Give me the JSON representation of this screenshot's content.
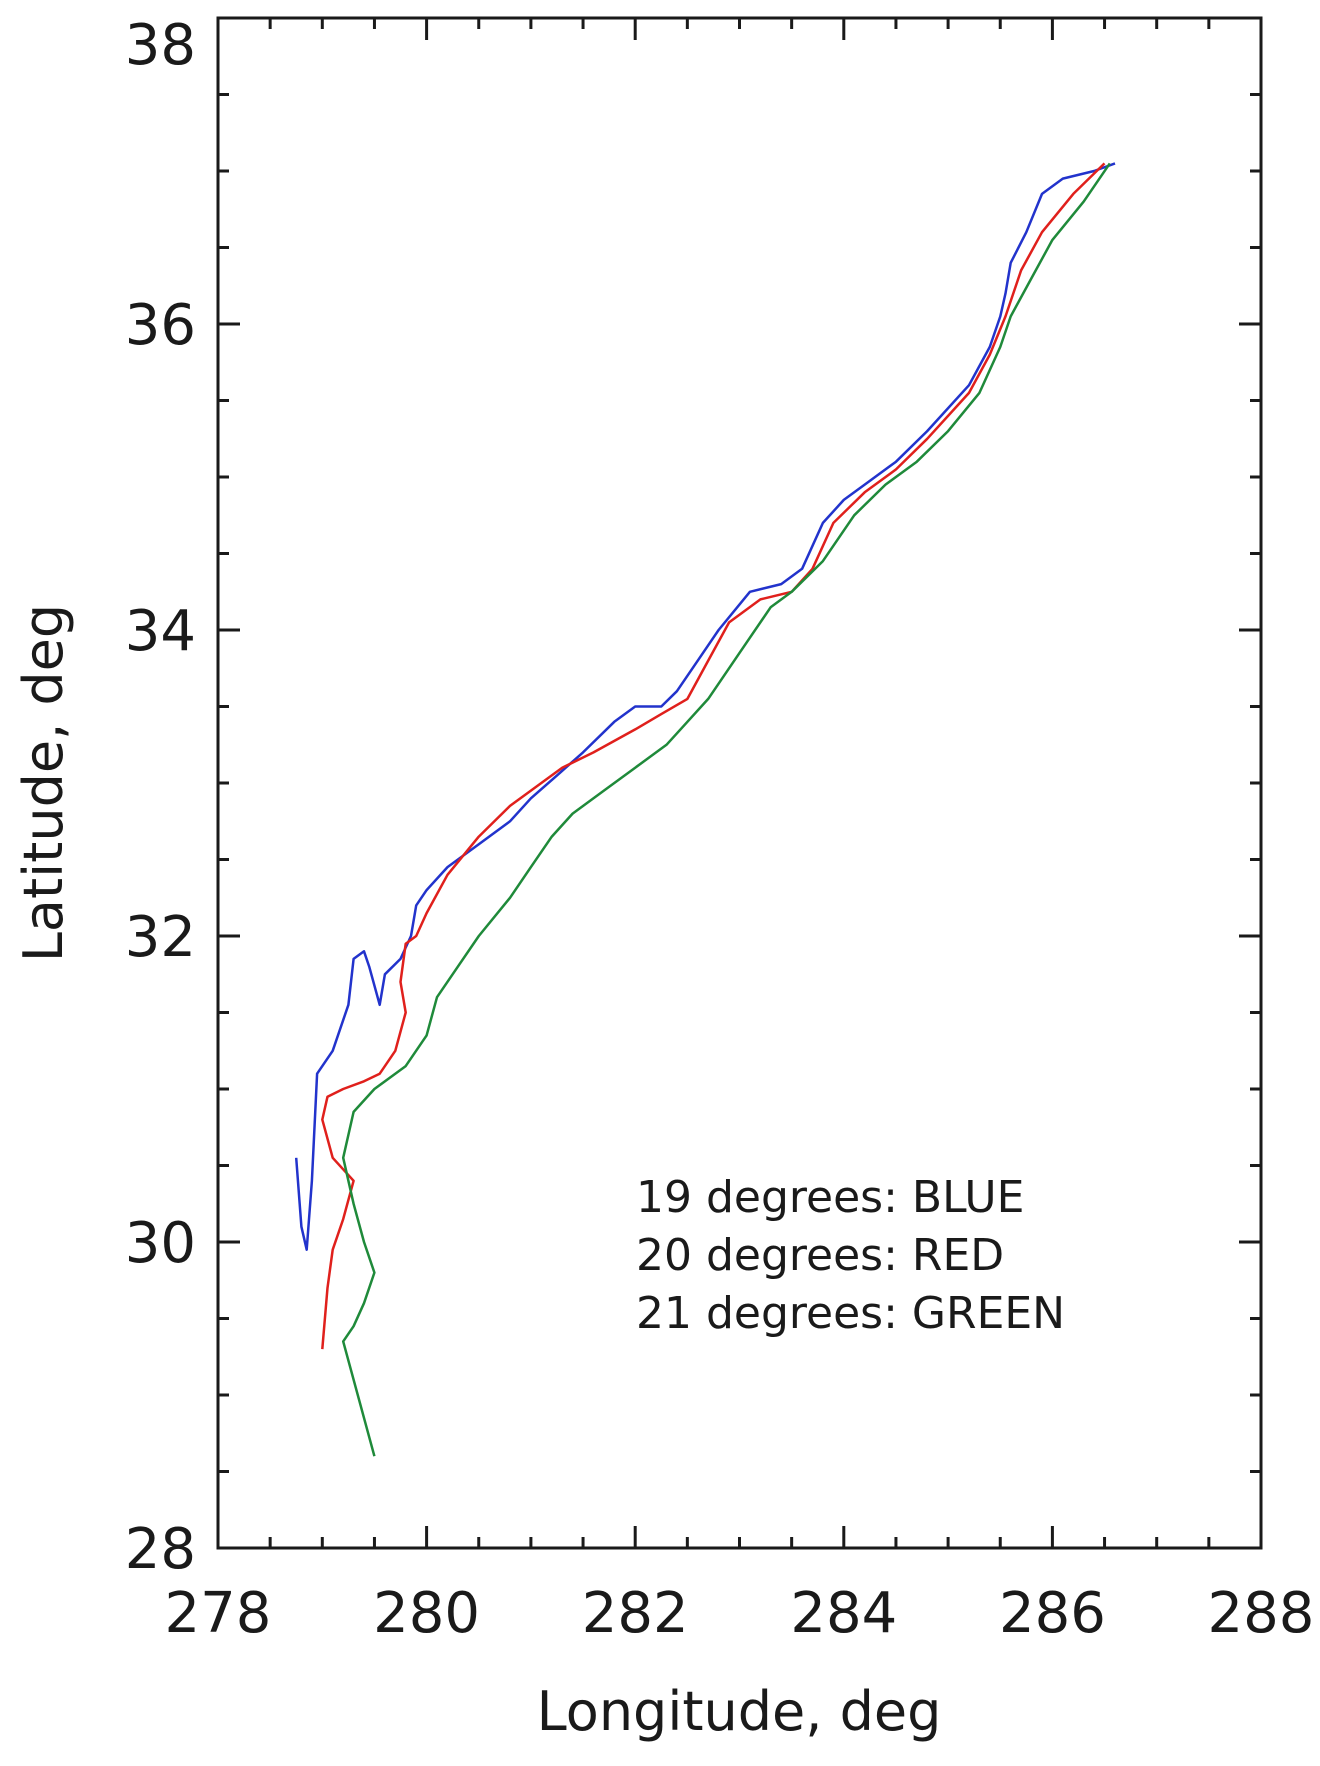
{
  "chart_data": {
    "type": "line",
    "title": "",
    "xlabel": "Longitude, deg",
    "ylabel": "Latitude, deg",
    "xlim": [
      278,
      288
    ],
    "ylim": [
      28,
      38
    ],
    "xticks": [
      "278",
      "280",
      "282",
      "284",
      "286",
      "288"
    ],
    "yticks": [
      "28",
      "30",
      "32",
      "34",
      "36",
      "38"
    ],
    "grid": false,
    "legend_placement": "bottom-right",
    "legend_entries": [
      "19 degrees: BLUE",
      "20 degrees: RED",
      "21 degrees: GREEN"
    ],
    "series": [
      {
        "name": "19 degrees: BLUE",
        "color": "#2233cc",
        "x": [
          278.75,
          278.8,
          278.85,
          278.9,
          278.95,
          279.1,
          279.25,
          279.3,
          279.4,
          279.45,
          279.55,
          279.6,
          279.75,
          279.85,
          279.9,
          280.0,
          280.2,
          280.5,
          280.8,
          281.0,
          281.25,
          281.5,
          281.8,
          282.0,
          282.25,
          282.4,
          282.6,
          282.8,
          283.1,
          283.4,
          283.6,
          283.8,
          284.0,
          284.2,
          284.5,
          284.8,
          285.2,
          285.4,
          285.5,
          285.55,
          285.6,
          285.75,
          285.9,
          286.1,
          286.4,
          286.6
        ],
        "y": [
          30.55,
          30.1,
          29.95,
          30.4,
          31.1,
          31.25,
          31.55,
          31.85,
          31.9,
          31.8,
          31.55,
          31.75,
          31.85,
          32.0,
          32.2,
          32.3,
          32.45,
          32.6,
          32.75,
          32.9,
          33.05,
          33.2,
          33.4,
          33.5,
          33.5,
          33.6,
          33.8,
          34.0,
          34.25,
          34.3,
          34.4,
          34.7,
          34.85,
          34.95,
          35.1,
          35.3,
          35.6,
          35.85,
          36.05,
          36.2,
          36.4,
          36.6,
          36.85,
          36.95,
          37.0,
          37.05
        ]
      },
      {
        "name": "20 degrees: RED",
        "color": "#e0201c",
        "x": [
          279.0,
          279.05,
          279.1,
          279.2,
          279.3,
          279.1,
          279.0,
          279.05,
          279.2,
          279.4,
          279.55,
          279.7,
          279.8,
          279.75,
          279.8,
          279.9,
          280.0,
          280.2,
          280.5,
          280.8,
          281.0,
          281.3,
          281.6,
          282.0,
          282.25,
          282.5,
          282.7,
          282.9,
          283.2,
          283.5,
          283.7,
          283.9,
          284.2,
          284.5,
          284.8,
          285.2,
          285.4,
          285.55,
          285.7,
          285.9,
          286.2,
          286.5
        ],
        "y": [
          29.3,
          29.7,
          29.95,
          30.15,
          30.4,
          30.55,
          30.8,
          30.95,
          31.0,
          31.05,
          31.1,
          31.25,
          31.5,
          31.7,
          31.95,
          32.0,
          32.15,
          32.4,
          32.65,
          32.85,
          32.95,
          33.1,
          33.2,
          33.35,
          33.45,
          33.55,
          33.8,
          34.05,
          34.2,
          34.25,
          34.4,
          34.7,
          34.9,
          35.05,
          35.25,
          35.55,
          35.8,
          36.05,
          36.35,
          36.6,
          36.85,
          37.05
        ]
      },
      {
        "name": "21 degrees: GREEN",
        "color": "#1f8a3a",
        "x": [
          279.5,
          279.4,
          279.3,
          279.2,
          279.3,
          279.4,
          279.5,
          279.4,
          279.3,
          279.2,
          279.3,
          279.5,
          279.8,
          280.0,
          280.1,
          280.3,
          280.5,
          280.8,
          281.0,
          281.2,
          281.4,
          281.7,
          282.0,
          282.3,
          282.5,
          282.7,
          283.0,
          283.3,
          283.5,
          283.8,
          284.1,
          284.4,
          284.7,
          285.0,
          285.3,
          285.5,
          285.6,
          285.8,
          286.0,
          286.3,
          286.55
        ],
        "y": [
          28.6,
          28.85,
          29.1,
          29.35,
          29.45,
          29.6,
          29.8,
          30.0,
          30.25,
          30.55,
          30.85,
          31.0,
          31.15,
          31.35,
          31.6,
          31.8,
          32.0,
          32.25,
          32.45,
          32.65,
          32.8,
          32.95,
          33.1,
          33.25,
          33.4,
          33.55,
          33.85,
          34.15,
          34.25,
          34.45,
          34.75,
          34.95,
          35.1,
          35.3,
          35.55,
          35.85,
          36.05,
          36.3,
          36.55,
          36.8,
          37.05
        ]
      }
    ]
  }
}
